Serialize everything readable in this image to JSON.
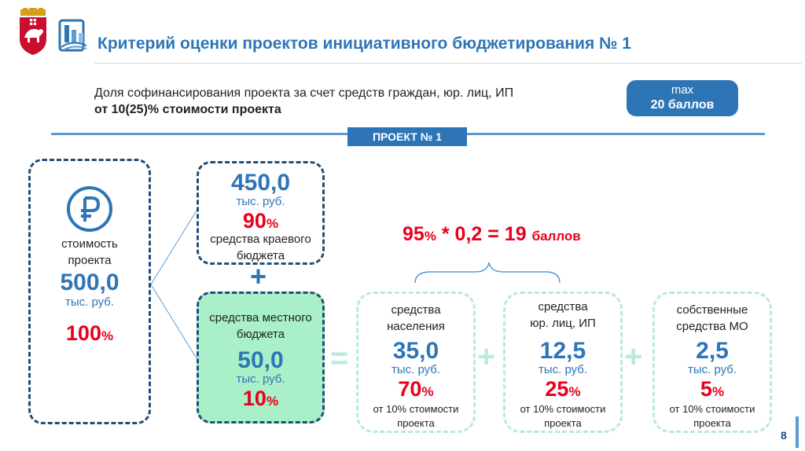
{
  "header": {
    "title": "Критерий оценки проектов инициативного бюджетирования № 1"
  },
  "criterion": {
    "line1": "Доля софинансирования проекта за счет средств граждан, юр. лиц, ИП",
    "line2": "от 10(25)% стоимости проекта",
    "max_label": "max",
    "max_value": "20 баллов"
  },
  "project_tab": "ПРОЕКТ № 1",
  "cost": {
    "icon": "ruble-icon",
    "label_line1": "стоимость",
    "label_line2": "проекта",
    "value": "500,0",
    "unit": "тыс. руб.",
    "percent": "100",
    "percent_sign": "%"
  },
  "regional": {
    "value": "450,0",
    "unit": "тыс. руб.",
    "percent": "90",
    "percent_sign": "%",
    "label_line1": "средства краевого",
    "label_line2": "бюджета"
  },
  "plus_sign": "+",
  "local": {
    "label_line1": "средства местного",
    "label_line2": "бюджета",
    "value": "50,0",
    "unit": "тыс. руб.",
    "percent": "10",
    "percent_sign": "%"
  },
  "equals_sign": "=",
  "formula": {
    "pct": "95",
    "pct_sign": "%",
    "expr": " * 0,2 = 19 ",
    "unit": "баллов"
  },
  "population": {
    "label_line1": "средства",
    "label_line2": "населения",
    "value": "35,0",
    "unit": "тыс. руб.",
    "percent": "70",
    "percent_sign": "%",
    "note_line1": "от 10% стоимости",
    "note_line2": "проекта"
  },
  "legal": {
    "label_line1": "средства",
    "label_line2": "юр. лиц, ИП",
    "value": "12,5",
    "unit": "тыс. руб.",
    "percent": "25",
    "percent_sign": "%",
    "note_line1": "от 10% стоимости",
    "note_line2": "проекта"
  },
  "municipal": {
    "label_line1": "собственные",
    "label_line2": "средства МО",
    "value": "2,5",
    "unit": "тыс. руб.",
    "percent": "5",
    "percent_sign": "%",
    "note_line1": "от 10% стоимости",
    "note_line2": "проекта"
  },
  "page_number": "8",
  "colors": {
    "blue": "#2e75b6",
    "dark_blue": "#1f4e79",
    "red": "#e8001c",
    "green_fill": "#a9efc7",
    "green_dash": "#b7ecd7"
  }
}
